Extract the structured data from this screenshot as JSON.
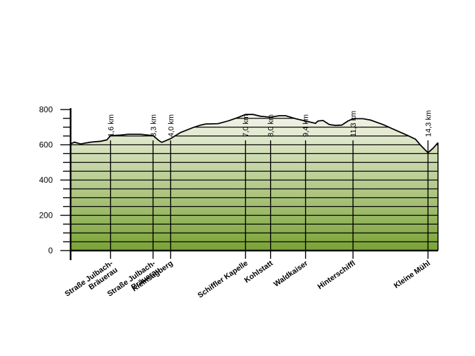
{
  "chart_data": {
    "type": "area",
    "title": "",
    "xlabel": "",
    "ylabel": "",
    "ylim": [
      0,
      800
    ],
    "xlim": [
      0,
      14.7
    ],
    "y_ticks": [
      0,
      200,
      400,
      600,
      800
    ],
    "grid": "horizontal",
    "fill_gradient": [
      "#f4f5ea",
      "#7aa336"
    ],
    "profile": [
      {
        "x": 0.0,
        "y": 605
      },
      {
        "x": 0.15,
        "y": 615
      },
      {
        "x": 0.4,
        "y": 605
      },
      {
        "x": 0.8,
        "y": 615
      },
      {
        "x": 1.2,
        "y": 620
      },
      {
        "x": 1.45,
        "y": 628
      },
      {
        "x": 1.6,
        "y": 652
      },
      {
        "x": 2.0,
        "y": 655
      },
      {
        "x": 2.3,
        "y": 660
      },
      {
        "x": 2.8,
        "y": 660
      },
      {
        "x": 3.3,
        "y": 652
      },
      {
        "x": 3.55,
        "y": 622
      },
      {
        "x": 3.65,
        "y": 614
      },
      {
        "x": 4.0,
        "y": 635
      },
      {
        "x": 4.4,
        "y": 670
      },
      {
        "x": 4.9,
        "y": 698
      },
      {
        "x": 5.2,
        "y": 712
      },
      {
        "x": 5.4,
        "y": 718
      },
      {
        "x": 5.9,
        "y": 720
      },
      {
        "x": 6.3,
        "y": 735
      },
      {
        "x": 6.7,
        "y": 755
      },
      {
        "x": 7.0,
        "y": 772
      },
      {
        "x": 7.3,
        "y": 772
      },
      {
        "x": 7.6,
        "y": 762
      },
      {
        "x": 8.0,
        "y": 757
      },
      {
        "x": 8.35,
        "y": 765
      },
      {
        "x": 8.6,
        "y": 765
      },
      {
        "x": 9.0,
        "y": 748
      },
      {
        "x": 9.4,
        "y": 735
      },
      {
        "x": 9.8,
        "y": 722
      },
      {
        "x": 9.9,
        "y": 735
      },
      {
        "x": 10.1,
        "y": 738
      },
      {
        "x": 10.35,
        "y": 715
      },
      {
        "x": 10.6,
        "y": 710
      },
      {
        "x": 10.85,
        "y": 712
      },
      {
        "x": 11.1,
        "y": 735
      },
      {
        "x": 11.3,
        "y": 748
      },
      {
        "x": 11.7,
        "y": 748
      },
      {
        "x": 12.0,
        "y": 740
      },
      {
        "x": 12.5,
        "y": 715
      },
      {
        "x": 13.0,
        "y": 683
      },
      {
        "x": 13.5,
        "y": 652
      },
      {
        "x": 13.8,
        "y": 632
      },
      {
        "x": 14.0,
        "y": 598
      },
      {
        "x": 14.3,
        "y": 555
      },
      {
        "x": 14.5,
        "y": 580
      },
      {
        "x": 14.7,
        "y": 612
      }
    ],
    "markers": [
      {
        "x": 1.6,
        "km": "1,6 km",
        "place": "Straße Julbach-Bräuerau",
        "place_lines": [
          "Straße Julbach-",
          "Bräuerau"
        ]
      },
      {
        "x": 3.3,
        "km": "3,3 km",
        "place": "Straße Julbach-Bräuerau",
        "place_lines": [
          "Straße Julbach-",
          "Bräuerau"
        ]
      },
      {
        "x": 4.0,
        "km": "4,0 km",
        "place": "Kleinsagberg",
        "place_lines": [
          "Kleinsagberg"
        ]
      },
      {
        "x": 7.0,
        "km": "7,0 km",
        "place": "Schiffler Kapelle",
        "place_lines": [
          "Schiffler Kapelle"
        ]
      },
      {
        "x": 8.0,
        "km": "8,0 km",
        "place": "Kohlstatt",
        "place_lines": [
          "Kohlstatt"
        ]
      },
      {
        "x": 9.4,
        "km": "9,4 km",
        "place": "Waldkaiser",
        "place_lines": [
          "Waldkaiser"
        ]
      },
      {
        "x": 11.3,
        "km": "11,3 km",
        "place": "Hinterschiffl",
        "place_lines": [
          "Hinterschiffl"
        ]
      },
      {
        "x": 14.3,
        "km": "14,3 km",
        "place": "Kleine Mühl",
        "place_lines": [
          "Kleine Mühl"
        ]
      }
    ]
  }
}
